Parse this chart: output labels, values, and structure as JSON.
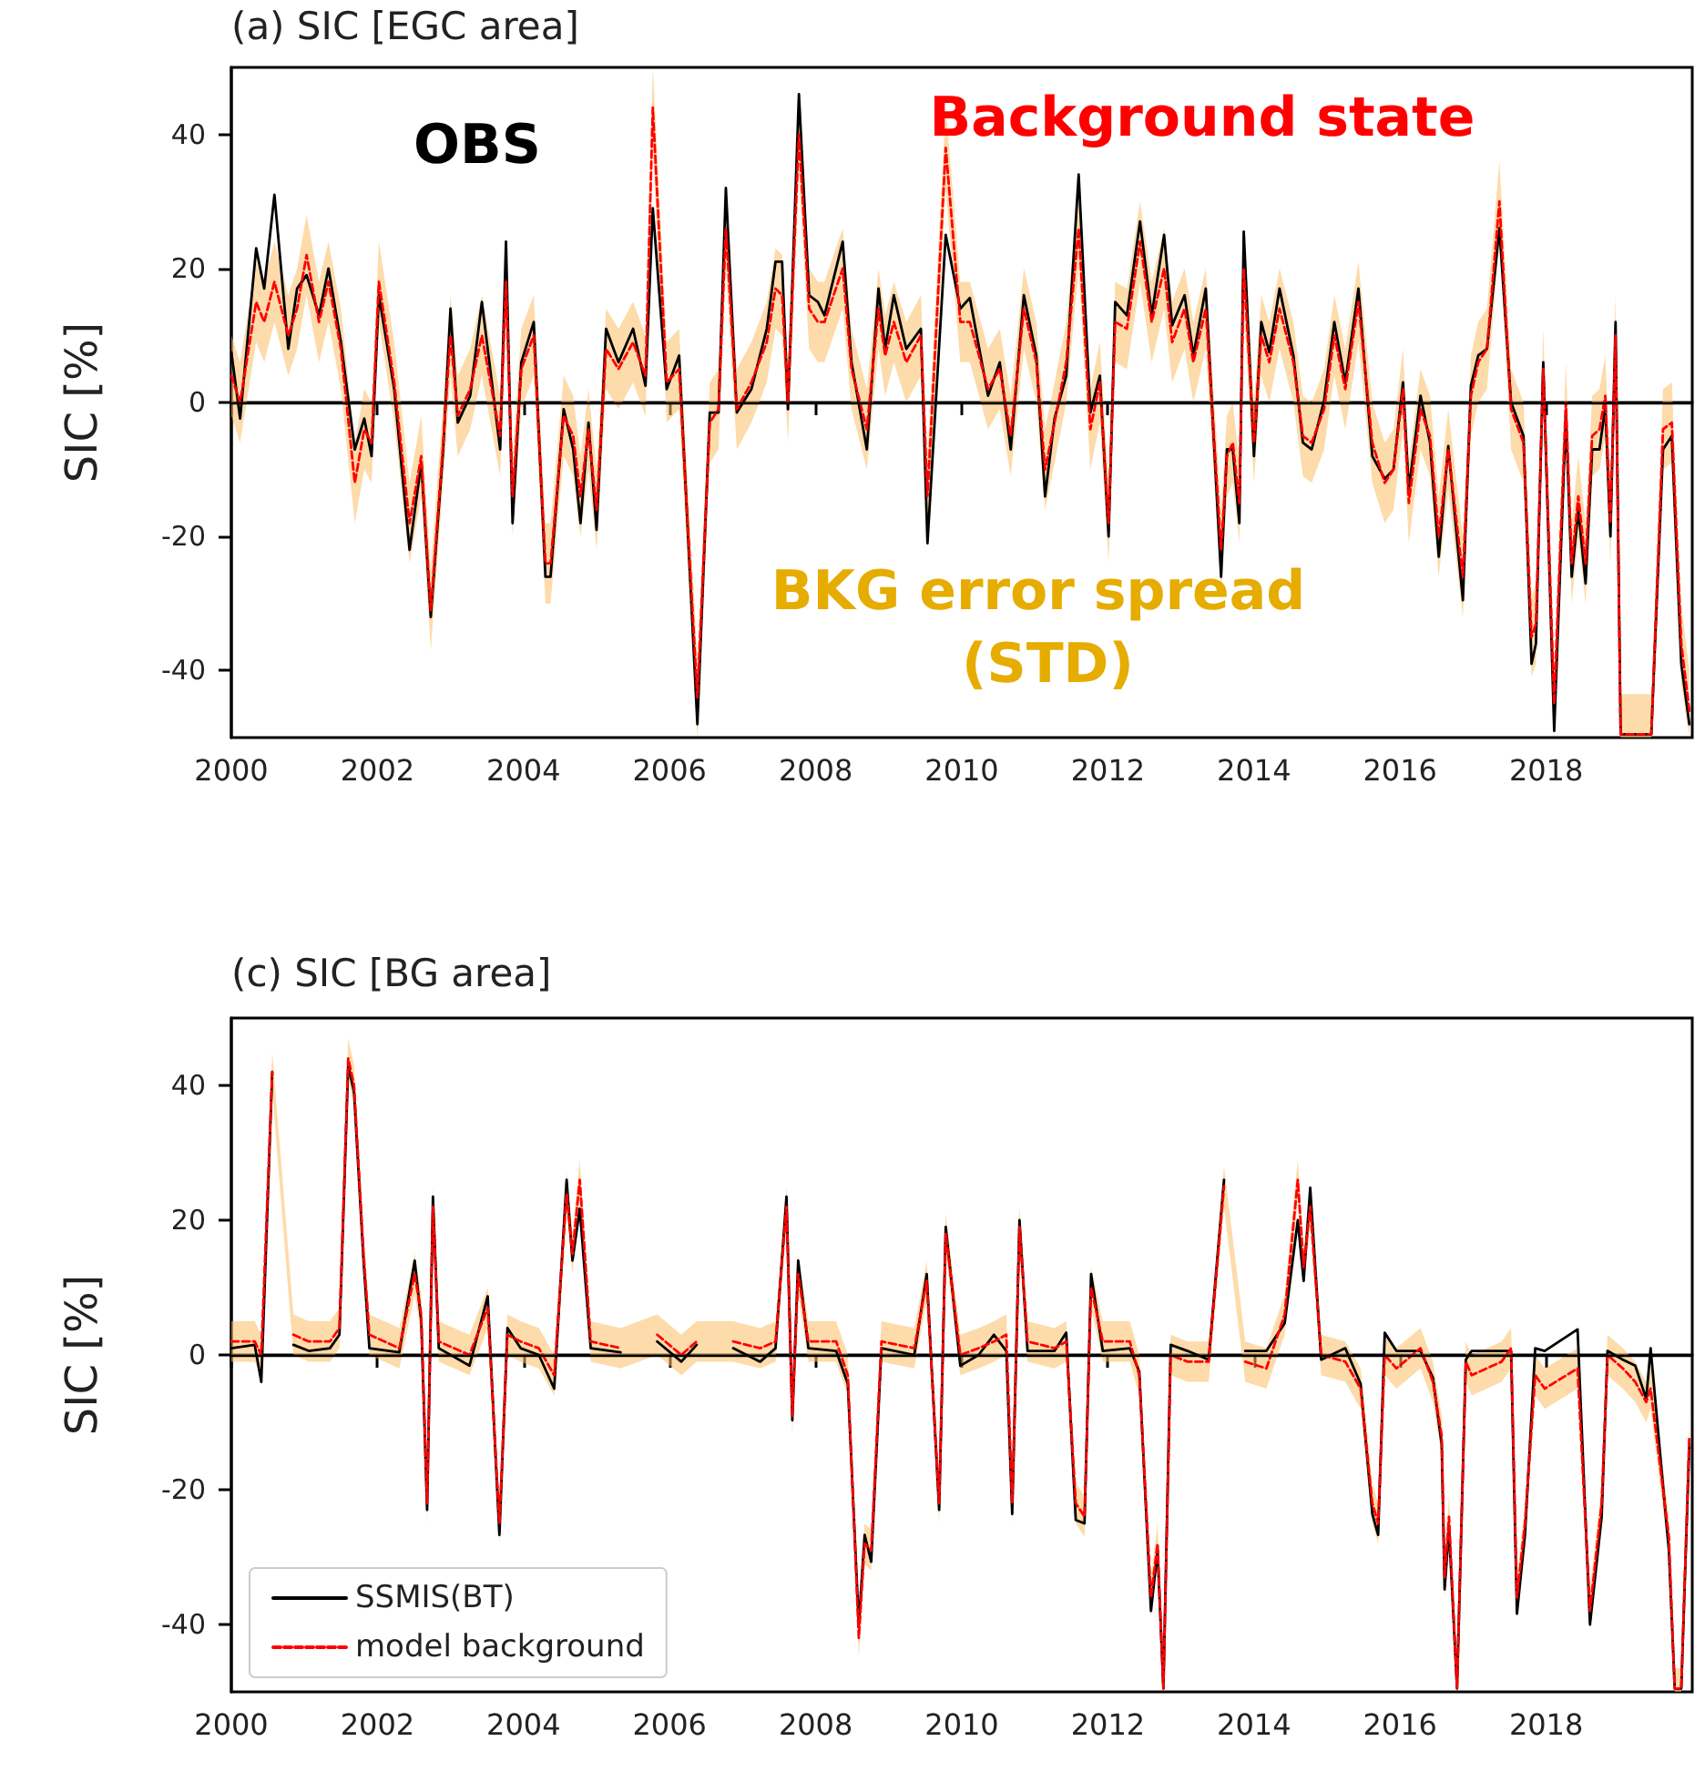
{
  "chart_data": [
    {
      "type": "line",
      "title": "(a) SIC [EGC area]",
      "ylabel": "SIC [%]",
      "xlim": [
        2000,
        2020
      ],
      "xticks": [
        2000,
        2002,
        2004,
        2006,
        2008,
        2010,
        2012,
        2014,
        2016,
        2018
      ],
      "ylim": [
        -50,
        50
      ],
      "yticks": [
        -40,
        -20,
        0,
        20,
        40
      ],
      "grid": false,
      "legend": false,
      "marker": "none",
      "annotations": [
        "OBS",
        "Background state",
        "BKG error spread (STD)"
      ],
      "ref_lines": [
        {
          "axis": "y",
          "value": 0,
          "color": "#000000"
        }
      ],
      "x": [
        2000.0,
        2000.12,
        2000.34,
        2000.45,
        2000.59,
        2000.78,
        2000.9,
        2001.03,
        2001.2,
        2001.33,
        2001.5,
        2001.69,
        2001.82,
        2001.92,
        2002.02,
        2002.23,
        2002.44,
        2002.6,
        2002.73,
        2002.9,
        2003.0,
        2003.1,
        2003.27,
        2003.43,
        2003.68,
        2003.76,
        2003.85,
        2003.97,
        2004.14,
        2004.3,
        2004.37,
        2004.55,
        2004.68,
        2004.78,
        2004.89,
        2005.0,
        2005.13,
        2005.3,
        2005.5,
        2005.67,
        2005.77,
        2005.96,
        2006.13,
        2006.38,
        2006.55,
        2006.67,
        2006.77,
        2006.92,
        2007.12,
        2007.33,
        2007.45,
        2007.54,
        2007.62,
        2007.77,
        2007.91,
        2008.03,
        2008.12,
        2008.37,
        2008.49,
        2008.7,
        2008.86,
        2008.95,
        2009.07,
        2009.24,
        2009.44,
        2009.53,
        2009.78,
        2009.98,
        2010.11,
        2010.36,
        2010.52,
        2010.67,
        2010.85,
        2011.02,
        2011.14,
        2011.27,
        2011.43,
        2011.6,
        2011.76,
        2011.89,
        2012.01,
        2012.1,
        2012.26,
        2012.44,
        2012.6,
        2012.77,
        2012.88,
        2013.05,
        2013.17,
        2013.34,
        2013.55,
        2013.63,
        2013.71,
        2013.8,
        2013.86,
        2014.0,
        2014.1,
        2014.21,
        2014.35,
        2014.54,
        2014.67,
        2014.79,
        2014.96,
        2015.1,
        2015.25,
        2015.43,
        2015.62,
        2015.79,
        2015.91,
        2016.04,
        2016.12,
        2016.28,
        2016.41,
        2016.53,
        2016.66,
        2016.86,
        2016.97,
        2017.07,
        2017.19,
        2017.36,
        2017.52,
        2017.69,
        2017.8,
        2017.86,
        2017.96,
        2018.11,
        2018.27,
        2018.35,
        2018.44,
        2018.54,
        2018.63,
        2018.73,
        2018.81,
        2018.88,
        2018.95,
        2019.02,
        2019.23,
        2019.44,
        2019.6,
        2019.72,
        2019.85,
        2019.96
      ],
      "series": [
        {
          "color": "#000000",
          "line_style": "solid",
          "values": [
            7.5,
            -2.4,
            23,
            17,
            31,
            8,
            17,
            19,
            13,
            20,
            9,
            -7,
            -2.4,
            -8,
            16,
            2,
            -22,
            -9,
            -32,
            -7,
            14,
            -3,
            1,
            15,
            -7,
            24,
            -18,
            6,
            12,
            -26,
            -26,
            -1,
            -7,
            -18,
            -3,
            -19,
            11,
            6,
            11,
            2.5,
            29,
            2,
            7,
            -48,
            -1.5,
            -1.5,
            32,
            -1.5,
            2,
            11,
            21,
            21,
            -1,
            46,
            16,
            15,
            13,
            24,
            6,
            -7,
            17,
            8,
            16,
            8,
            11,
            -21,
            25,
            14,
            15.6,
            1,
            6,
            -7,
            16,
            7,
            -14,
            -2.4,
            4,
            34,
            -1.5,
            4,
            -20,
            15,
            13,
            27,
            13,
            25,
            11.5,
            16,
            7,
            17,
            -26,
            -7,
            -7,
            -18,
            25.5,
            -8,
            12,
            7.5,
            17,
            7,
            -6,
            -7,
            0.3,
            12,
            3,
            17,
            -8,
            -11.4,
            -10,
            3,
            -13,
            1,
            -6,
            -23,
            -6.5,
            -29.5,
            2.5,
            7,
            8,
            26,
            0,
            -5,
            -39,
            -36,
            6,
            -49,
            -2,
            -26,
            -16,
            -27,
            -7,
            -7,
            -0.6,
            -20,
            12,
            -49.5,
            -49.5,
            -49.5,
            -7,
            -5,
            -39,
            -48
          ]
        },
        {
          "color": "#ff0000",
          "line_style": "dashed",
          "values": [
            4,
            0,
            15,
            12,
            18,
            10,
            14,
            22,
            12,
            18,
            8,
            -12,
            -4,
            -6,
            18,
            3,
            -18,
            -8,
            -31,
            -6,
            10,
            -2,
            2,
            10,
            -5,
            18,
            -14,
            5,
            10,
            -24,
            -24,
            -2,
            -5,
            -14,
            -4,
            -16,
            8,
            5,
            9,
            4,
            44,
            3,
            5,
            -44,
            -3,
            -1,
            26,
            -1,
            3,
            9,
            17,
            16,
            0,
            40,
            14,
            12,
            12,
            20,
            5,
            -4,
            14,
            7,
            12,
            6,
            10,
            -14,
            38,
            12,
            12,
            2,
            5,
            -5,
            14,
            6,
            -10,
            -3,
            6,
            26,
            -4,
            3,
            -18,
            12,
            11,
            24,
            12,
            20,
            9,
            14,
            6,
            14,
            -22,
            -8,
            -6,
            -15,
            20,
            -6,
            10,
            6,
            14,
            6,
            -5,
            -6,
            -1,
            10,
            2,
            15,
            -6,
            -12,
            -10,
            2,
            -15,
            -1,
            -5,
            -20,
            -7,
            -26,
            1,
            6,
            8,
            30,
            -1,
            -6,
            -35,
            -33,
            5,
            -45,
            0,
            -24,
            -14,
            -24,
            -5,
            -4,
            1,
            -18,
            10,
            -49.5,
            -49.5,
            -49.5,
            -4,
            -3,
            -36,
            -46
          ],
          "upper": [
            10,
            6,
            21,
            18,
            24,
            16,
            20,
            28,
            18,
            24,
            14,
            -6,
            2,
            0,
            24,
            9,
            -12,
            -2,
            -25,
            0,
            16,
            4,
            8,
            16,
            1,
            24,
            -8,
            11,
            16,
            -18,
            -18,
            4,
            1,
            -8,
            2,
            -10,
            14,
            11,
            15,
            10,
            50,
            9,
            11,
            -38,
            3,
            5,
            32,
            5,
            9,
            15,
            23,
            22,
            6,
            46,
            20,
            18,
            18,
            26,
            11,
            2,
            20,
            13,
            18,
            12,
            16,
            -8,
            44,
            18,
            18,
            8,
            11,
            1,
            20,
            12,
            -4,
            3,
            12,
            32,
            2,
            9,
            -12,
            18,
            17,
            30,
            18,
            26,
            15,
            20,
            12,
            20,
            -16,
            -2,
            0,
            -9,
            26,
            0,
            16,
            12,
            20,
            12,
            1,
            0,
            5,
            16,
            8,
            21,
            0,
            -6,
            -4,
            8,
            -9,
            5,
            1,
            -14,
            -1,
            -20,
            7,
            12,
            14,
            36,
            5,
            0,
            -29,
            -27,
            11,
            -39,
            6,
            -18,
            -8,
            -18,
            1,
            2,
            7,
            -12,
            16,
            -43.5,
            -43.5,
            -43.5,
            2,
            3,
            -30,
            -40
          ],
          "lower": [
            -2,
            -6,
            9,
            6,
            12,
            4,
            8,
            16,
            6,
            12,
            2,
            -18,
            -10,
            -12,
            12,
            -3,
            -24,
            -14,
            -37,
            -12,
            4,
            -8,
            -4,
            4,
            -11,
            12,
            -20,
            -1,
            4,
            -30,
            -30,
            -8,
            -11,
            -20,
            -10,
            -22,
            2,
            -1,
            3,
            -2,
            38,
            -3,
            -1,
            -50,
            -9,
            -7,
            20,
            -7,
            -3,
            3,
            11,
            10,
            -6,
            34,
            8,
            6,
            6,
            14,
            -1,
            -10,
            8,
            1,
            6,
            0,
            4,
            -20,
            32,
            6,
            6,
            -4,
            -1,
            -11,
            8,
            0,
            -16,
            -9,
            0,
            20,
            -10,
            -3,
            -24,
            6,
            5,
            18,
            6,
            14,
            3,
            8,
            0,
            8,
            -28,
            -14,
            -12,
            -21,
            14,
            -12,
            4,
            0,
            8,
            0,
            -11,
            -12,
            -7,
            4,
            -4,
            9,
            -12,
            -18,
            -16,
            -4,
            -21,
            -7,
            -11,
            -26,
            -13,
            -32,
            -5,
            0,
            2,
            24,
            -7,
            -12,
            -41,
            -39,
            -1,
            -50,
            -6,
            -30,
            -20,
            -30,
            -11,
            -10,
            -5,
            -24,
            4,
            -50,
            -50,
            -50,
            -10,
            -9,
            -42,
            -50
          ]
        }
      ]
    },
    {
      "type": "line",
      "title": "(c) SIC [BG area]",
      "ylabel": "SIC [%]",
      "xlim": [
        2000,
        2020
      ],
      "xticks": [
        2000,
        2002,
        2004,
        2006,
        2008,
        2010,
        2012,
        2014,
        2016,
        2018
      ],
      "ylim": [
        -50,
        50
      ],
      "yticks": [
        -40,
        -20,
        0,
        20,
        40
      ],
      "grid": false,
      "legend": "bottom left",
      "marker": "none",
      "ref_lines": [
        {
          "axis": "y",
          "value": 0,
          "color": "#000000"
        }
      ],
      "x": [
        2000.0,
        2000.32,
        2000.41,
        2000.56,
        2000.65,
        2000.75,
        2000.85,
        2001.06,
        2001.35,
        2001.48,
        2001.6,
        2001.68,
        2001.81,
        2001.89,
        2002.3,
        2002.51,
        2002.6,
        2002.68,
        2002.76,
        2002.84,
        2003.26,
        2003.51,
        2003.67,
        2003.78,
        2003.96,
        2004.21,
        2004.42,
        2004.59,
        2004.67,
        2004.77,
        2004.92,
        2005.33,
        2005.62,
        2005.7,
        2005.83,
        2006.16,
        2006.37,
        2006.66,
        2006.87,
        2007.24,
        2007.45,
        2007.6,
        2007.68,
        2007.76,
        2007.9,
        2008.28,
        2008.44,
        2008.59,
        2008.67,
        2008.76,
        2008.9,
        2009.35,
        2009.52,
        2009.69,
        2009.78,
        2009.98,
        2010.23,
        2010.44,
        2010.61,
        2010.69,
        2010.79,
        2010.9,
        2011.27,
        2011.43,
        2011.56,
        2011.68,
        2011.77,
        2011.93,
        2012.3,
        2012.43,
        2012.59,
        2012.68,
        2012.76,
        2012.86,
        2013.09,
        2013.38,
        2013.59,
        2013.67,
        2013.75,
        2013.88,
        2014.17,
        2014.42,
        2014.6,
        2014.68,
        2014.77,
        2014.92,
        2015.25,
        2015.46,
        2015.62,
        2015.7,
        2015.79,
        2015.95,
        2016.28,
        2016.45,
        2016.57,
        2016.61,
        2016.67,
        2016.78,
        2016.9,
        2016.98,
        2017.39,
        2017.52,
        2017.6,
        2017.71,
        2017.85,
        2017.98,
        2018.43,
        2018.6,
        2018.76,
        2018.84,
        2019.05,
        2019.22,
        2019.37,
        2019.43,
        2019.68,
        2019.76,
        2019.85,
        2019.96
      ],
      "series": [
        {
          "name": "SSMIS(BT)",
          "color": "#000000",
          "line_style": "solid",
          "values": [
            1,
            1.5,
            -4,
            42,
            null,
            null,
            1.5,
            0.6,
            1,
            3,
            43,
            39,
            14,
            1,
            0.4,
            14,
            5,
            -23,
            23.5,
            1,
            -1.6,
            8.7,
            -26.7,
            4,
            1,
            0,
            -5,
            26,
            14,
            21.7,
            1,
            0.4,
            null,
            null,
            2,
            -1,
            1.5,
            null,
            1,
            -1,
            1,
            23.5,
            -9.7,
            14,
            1,
            0.6,
            -4.3,
            -40,
            -26.7,
            -30.7,
            1,
            0,
            12,
            -23,
            19,
            -1.6,
            0,
            3,
            0.6,
            -23.6,
            20,
            0.6,
            0.6,
            3.3,
            -24.5,
            -25,
            12,
            0.6,
            1,
            -2.5,
            -38,
            -29,
            -49.5,
            1.5,
            0.6,
            -0.7,
            26,
            null,
            null,
            0.6,
            0.6,
            4.7,
            20,
            11,
            24.8,
            -0.7,
            1,
            -4.3,
            -23.6,
            -26.7,
            3.3,
            0.6,
            0.6,
            -3.4,
            -13.3,
            -34.8,
            -25.8,
            -49.5,
            -0.7,
            0.6,
            0.6,
            0.6,
            -38.4,
            -26.7,
            1,
            0.6,
            3.8,
            -40,
            -24,
            0.6,
            -0.7,
            -1.6,
            -6.5,
            1,
            -29,
            -49.5,
            -49.5,
            -13.3
          ]
        },
        {
          "name": "model background",
          "color": "#ff0000",
          "line_style": "dashed",
          "values": [
            2,
            2,
            0,
            42,
            null,
            null,
            3,
            2,
            2,
            4,
            44,
            40,
            15,
            3,
            1,
            12,
            6,
            -22,
            22,
            2,
            0,
            7,
            -25,
            3,
            2,
            1,
            -3,
            24,
            15,
            26,
            2,
            1,
            null,
            null,
            3,
            0,
            2,
            null,
            2,
            1,
            2,
            22,
            -9,
            12,
            2,
            2,
            -3,
            -42,
            -28,
            -29,
            2,
            1,
            11,
            -22,
            18,
            0,
            1,
            2,
            3,
            -22,
            19,
            2,
            1,
            2,
            -22,
            -24,
            10,
            2,
            2,
            -3,
            -36,
            -28,
            -49.5,
            0,
            -1,
            -1,
            25,
            null,
            null,
            -1,
            -2,
            6,
            26,
            13,
            22,
            0,
            -1,
            -5,
            -22,
            -25,
            0,
            -2,
            1,
            -4,
            -12,
            -33,
            -24,
            -49.5,
            -1,
            -3,
            -1,
            1,
            -36,
            -25,
            -3,
            -5,
            -2,
            -38,
            -22,
            0,
            -2,
            -4,
            -7,
            -5,
            -27,
            -49.5,
            -49.5,
            -12
          ],
          "upper": [
            5,
            5,
            3,
            45,
            null,
            null,
            6,
            5,
            5,
            7,
            47,
            43,
            18,
            6,
            4,
            15,
            9,
            -19,
            25,
            5,
            3,
            10,
            -22,
            6,
            5,
            4,
            0,
            27,
            18,
            29,
            5,
            4,
            null,
            null,
            6,
            3,
            5,
            null,
            5,
            4,
            5,
            25,
            -6,
            15,
            5,
            5,
            0,
            -39,
            -25,
            -26,
            5,
            4,
            14,
            -19,
            21,
            3,
            4,
            5,
            6,
            -19,
            22,
            5,
            4,
            5,
            -19,
            -21,
            13,
            5,
            5,
            0,
            -33,
            -25,
            -46.5,
            3,
            2,
            2,
            28,
            null,
            null,
            2,
            1,
            9,
            29,
            16,
            25,
            3,
            2,
            -2,
            -19,
            -22,
            3,
            1,
            4,
            -1,
            -9,
            -30,
            -21,
            -46.5,
            2,
            0,
            2,
            4,
            -33,
            -22,
            0,
            -2,
            1,
            -35,
            -19,
            3,
            1,
            -1,
            -4,
            -2,
            -24,
            -46.5,
            -46.5,
            -9
          ],
          "lower": [
            -1,
            -1,
            -3,
            39,
            null,
            null,
            0,
            -1,
            -1,
            1,
            41,
            37,
            12,
            0,
            -2,
            9,
            3,
            -25,
            19,
            -1,
            -3,
            4,
            -28,
            0,
            -1,
            -2,
            -6,
            21,
            12,
            23,
            -1,
            -2,
            null,
            null,
            0,
            -3,
            -1,
            null,
            -1,
            -2,
            -1,
            19,
            -12,
            9,
            -1,
            -1,
            -6,
            -45,
            -31,
            -32,
            -1,
            -2,
            8,
            -25,
            15,
            -3,
            -2,
            -1,
            0,
            -25,
            16,
            -1,
            -2,
            -1,
            -25,
            -27,
            7,
            -1,
            -1,
            -6,
            -39,
            -31,
            -50,
            -3,
            -4,
            -4,
            22,
            null,
            null,
            -4,
            -5,
            3,
            23,
            10,
            19,
            -3,
            -4,
            -8,
            -25,
            -28,
            -3,
            -5,
            -2,
            -7,
            -15,
            -36,
            -27,
            -50,
            -4,
            -6,
            -4,
            -2,
            -39,
            -28,
            -6,
            -8,
            -5,
            -41,
            -25,
            -3,
            -5,
            -7,
            -10,
            -8,
            -30,
            -50,
            -50,
            -15
          ]
        }
      ]
    }
  ]
}
